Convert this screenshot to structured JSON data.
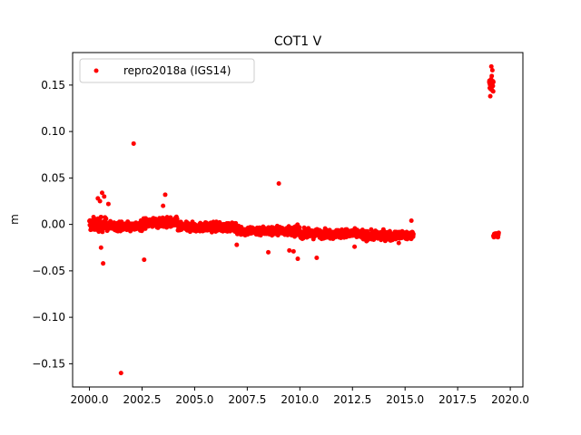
{
  "chart_data": {
    "type": "scatter",
    "title": "COT1 V",
    "xlabel": "",
    "ylabel": "m",
    "xlim": [
      1999.2,
      2020.6
    ],
    "ylim": [
      -0.175,
      0.185
    ],
    "xticks": [
      2000.0,
      2002.5,
      2005.0,
      2007.5,
      2010.0,
      2012.5,
      2015.0,
      2017.5,
      2020.0
    ],
    "xtick_labels": [
      "2000.0",
      "2002.5",
      "2005.0",
      "2007.5",
      "2010.0",
      "2012.5",
      "2015.0",
      "2017.5",
      "2020.0"
    ],
    "yticks": [
      -0.15,
      -0.1,
      -0.05,
      0.0,
      0.05,
      0.1,
      0.15
    ],
    "ytick_labels": [
      "−0.15",
      "−0.10",
      "−0.05",
      "0.00",
      "0.05",
      "0.10",
      "0.15"
    ],
    "grid": false,
    "legend_position": "top-left",
    "series": [
      {
        "name": "repro2018a (IGS14)",
        "color": "#ff0000",
        "marker": "dot",
        "bands": [
          {
            "x_start": 2000.0,
            "x_end": 2000.8,
            "y_center": 0.0,
            "spread": 0.012
          },
          {
            "x_start": 2000.8,
            "x_end": 2002.5,
            "y_center": -0.002,
            "spread": 0.008
          },
          {
            "x_start": 2002.5,
            "x_end": 2004.2,
            "y_center": 0.002,
            "spread": 0.009
          },
          {
            "x_start": 2004.2,
            "x_end": 2007.0,
            "y_center": -0.003,
            "spread": 0.008
          },
          {
            "x_start": 2007.0,
            "x_end": 2010.0,
            "y_center": -0.007,
            "spread": 0.008
          },
          {
            "x_start": 2010.0,
            "x_end": 2013.0,
            "y_center": -0.01,
            "spread": 0.008
          },
          {
            "x_start": 2013.0,
            "x_end": 2015.4,
            "y_center": -0.012,
            "spread": 0.008
          },
          {
            "x_start": 2019.0,
            "x_end": 2019.2,
            "y_center": 0.152,
            "spread": 0.012
          },
          {
            "x_start": 2019.2,
            "x_end": 2019.45,
            "y_center": -0.012,
            "spread": 0.006
          }
        ],
        "outliers": [
          [
            2000.6,
            0.034
          ],
          [
            2000.7,
            0.03
          ],
          [
            2000.4,
            0.028
          ],
          [
            2000.5,
            0.025
          ],
          [
            2000.65,
            -0.042
          ],
          [
            2000.55,
            -0.025
          ],
          [
            2000.9,
            0.022
          ],
          [
            2001.5,
            -0.16
          ],
          [
            2002.1,
            0.087
          ],
          [
            2002.6,
            -0.038
          ],
          [
            2003.6,
            0.032
          ],
          [
            2003.5,
            0.02
          ],
          [
            2007.0,
            -0.022
          ],
          [
            2008.5,
            -0.03
          ],
          [
            2009.0,
            0.044
          ],
          [
            2009.5,
            -0.028
          ],
          [
            2009.9,
            -0.037
          ],
          [
            2009.7,
            -0.029
          ],
          [
            2010.8,
            -0.036
          ],
          [
            2012.6,
            -0.024
          ],
          [
            2014.7,
            -0.02
          ],
          [
            2015.3,
            0.004
          ],
          [
            2019.1,
            0.17
          ],
          [
            2019.15,
            0.166
          ],
          [
            2019.05,
            0.138
          ]
        ]
      }
    ]
  }
}
